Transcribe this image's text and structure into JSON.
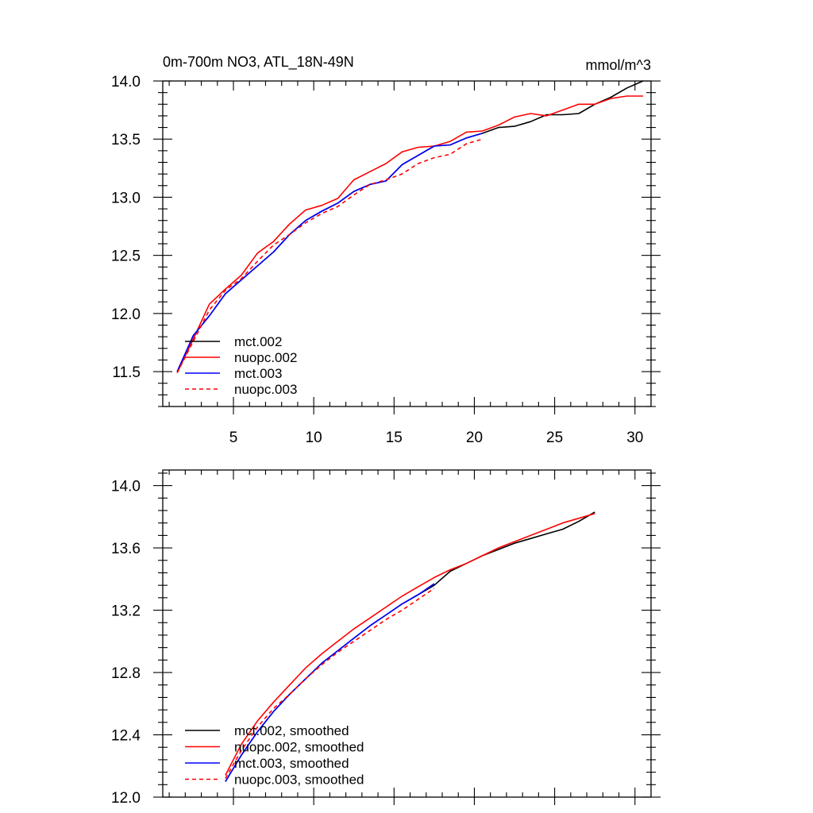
{
  "chart_data": [
    {
      "type": "line",
      "title": "0m-700m NO3, ATL_18N-49N",
      "units": "mmol/m^3",
      "xlim": [
        0.6,
        31
      ],
      "ylim": [
        11.2,
        14.0
      ],
      "xticks": [
        5,
        10,
        15,
        20,
        25,
        30
      ],
      "yticks": [
        11.5,
        12.0,
        12.5,
        13.0,
        13.5,
        14.0
      ],
      "xtick_labels": [
        "5",
        "10",
        "15",
        "20",
        "25",
        "30"
      ],
      "ytick_labels": [
        "11.5",
        "12.0",
        "12.5",
        "13.0",
        "13.5",
        "14.0"
      ],
      "legend_position": "bottom-left",
      "series": [
        {
          "name": "mct.002",
          "color": "#000000",
          "dash": "solid",
          "x": [
            1.5,
            2.5,
            3.5,
            4.5,
            5.5,
            6.5,
            7.5,
            8.5,
            9.5,
            10.5,
            11.5,
            12.5,
            13.5,
            14.5,
            15.5,
            16.5,
            17.5,
            18.5,
            19.5,
            20.5,
            21.5,
            22.5,
            23.5,
            24.5,
            25.5,
            26.5,
            27.5,
            28.5,
            29.5,
            30.5
          ],
          "y": [
            11.5,
            11.81,
            11.98,
            12.17,
            12.29,
            12.41,
            12.53,
            12.68,
            12.8,
            12.88,
            12.95,
            13.05,
            13.11,
            13.14,
            13.28,
            13.36,
            13.44,
            13.45,
            13.51,
            13.55,
            13.6,
            13.61,
            13.65,
            13.71,
            13.71,
            13.72,
            13.8,
            13.86,
            13.94,
            14.0
          ]
        },
        {
          "name": "nuopc.002",
          "color": "#ff0000",
          "dash": "solid",
          "x": [
            1.5,
            2.5,
            3.5,
            4.5,
            5.5,
            6.5,
            7.5,
            8.5,
            9.5,
            10.5,
            11.5,
            12.5,
            13.5,
            14.5,
            15.5,
            16.5,
            17.5,
            18.5,
            19.5,
            20.5,
            21.5,
            22.5,
            23.5,
            24.5,
            25.5,
            26.5,
            27.5,
            28.5,
            29.5,
            30.5
          ],
          "y": [
            11.49,
            11.78,
            12.08,
            12.21,
            12.33,
            12.52,
            12.62,
            12.77,
            12.89,
            12.93,
            12.99,
            13.15,
            13.22,
            13.29,
            13.39,
            13.43,
            13.44,
            13.48,
            13.56,
            13.57,
            13.62,
            13.69,
            13.72,
            13.7,
            13.75,
            13.8,
            13.8,
            13.85,
            13.87,
            13.87
          ]
        },
        {
          "name": "mct.003",
          "color": "#0000ff",
          "dash": "solid",
          "x": [
            1.5,
            2.5,
            3.5,
            4.5,
            5.5,
            6.5,
            7.5,
            8.5,
            9.5,
            10.5,
            11.5,
            12.5,
            13.5,
            14.5,
            15.5,
            16.5,
            17.5,
            18.5,
            19.5,
            20.5
          ],
          "y": [
            11.5,
            11.81,
            11.98,
            12.17,
            12.29,
            12.41,
            12.53,
            12.68,
            12.8,
            12.88,
            12.95,
            13.05,
            13.11,
            13.14,
            13.28,
            13.36,
            13.44,
            13.45,
            13.51,
            13.55
          ]
        },
        {
          "name": "nuopc.003",
          "color": "#ff0000",
          "dash": "dashed",
          "x": [
            1.5,
            2.5,
            3.5,
            4.5,
            5.5,
            6.5,
            7.5,
            8.5,
            9.5,
            10.5,
            11.5,
            12.5,
            13.5,
            14.5,
            15.5,
            16.5,
            17.5,
            18.5,
            19.5,
            20.5
          ],
          "y": [
            11.49,
            11.76,
            12.03,
            12.2,
            12.3,
            12.45,
            12.59,
            12.68,
            12.78,
            12.86,
            12.92,
            13.02,
            13.11,
            13.15,
            13.2,
            13.29,
            13.34,
            13.37,
            13.46,
            13.5
          ]
        }
      ]
    },
    {
      "type": "line",
      "title": "",
      "xlim": [
        0.6,
        31
      ],
      "ylim": [
        12.0,
        14.1
      ],
      "xticks": [
        5,
        10,
        15,
        20,
        25,
        30
      ],
      "yticks": [
        12.0,
        12.4,
        12.8,
        13.2,
        13.6,
        14.0
      ],
      "xtick_labels": [],
      "ytick_labels": [
        "12.0",
        "12.4",
        "12.8",
        "13.2",
        "13.6",
        "14.0"
      ],
      "legend_position": "bottom-left",
      "series": [
        {
          "name": "mct.002, smoothed",
          "color": "#000000",
          "dash": "solid",
          "x": [
            4.5,
            5.5,
            6.5,
            7.5,
            8.5,
            9.5,
            10.5,
            11.5,
            12.5,
            13.5,
            14.5,
            15.5,
            16.5,
            17.5,
            18.5,
            19.5,
            20.5,
            21.5,
            22.5,
            23.5,
            24.5,
            25.5,
            26.5,
            27.5
          ],
          "y": [
            12.1,
            12.27,
            12.42,
            12.55,
            12.66,
            12.76,
            12.86,
            12.94,
            13.02,
            13.1,
            13.17,
            13.24,
            13.3,
            13.36,
            13.45,
            13.5,
            13.55,
            13.59,
            13.63,
            13.66,
            13.69,
            13.72,
            13.77,
            13.83
          ]
        },
        {
          "name": "nuopc.002, smoothed",
          "color": "#ff0000",
          "dash": "solid",
          "x": [
            4.5,
            5.5,
            6.5,
            7.5,
            8.5,
            9.5,
            10.5,
            11.5,
            12.5,
            13.5,
            14.5,
            15.5,
            16.5,
            17.5,
            18.5,
            19.5,
            20.5,
            21.5,
            22.5,
            23.5,
            24.5,
            25.5,
            26.5,
            27.5
          ],
          "y": [
            12.14,
            12.34,
            12.49,
            12.61,
            12.72,
            12.83,
            12.92,
            13.0,
            13.08,
            13.15,
            13.22,
            13.29,
            13.35,
            13.41,
            13.46,
            13.5,
            13.55,
            13.6,
            13.64,
            13.68,
            13.72,
            13.76,
            13.79,
            13.82
          ]
        },
        {
          "name": "mct.003, smoothed",
          "color": "#0000ff",
          "dash": "solid",
          "x": [
            4.5,
            5.5,
            6.5,
            7.5,
            8.5,
            9.5,
            10.5,
            11.5,
            12.5,
            13.5,
            14.5,
            15.5,
            16.5,
            17.5
          ],
          "y": [
            12.1,
            12.27,
            12.42,
            12.55,
            12.66,
            12.76,
            12.86,
            12.94,
            13.02,
            13.1,
            13.17,
            13.24,
            13.3,
            13.37
          ]
        },
        {
          "name": "nuopc.003, smoothed",
          "color": "#ff0000",
          "dash": "dashed",
          "x": [
            4.5,
            5.5,
            6.5,
            7.5,
            8.5,
            9.5,
            10.5,
            11.5,
            12.5,
            13.5,
            14.5,
            15.5,
            16.5,
            17.5
          ],
          "y": [
            12.12,
            12.3,
            12.45,
            12.57,
            12.66,
            12.76,
            12.85,
            12.93,
            13.0,
            13.07,
            13.14,
            13.2,
            13.27,
            13.34
          ]
        }
      ]
    }
  ]
}
